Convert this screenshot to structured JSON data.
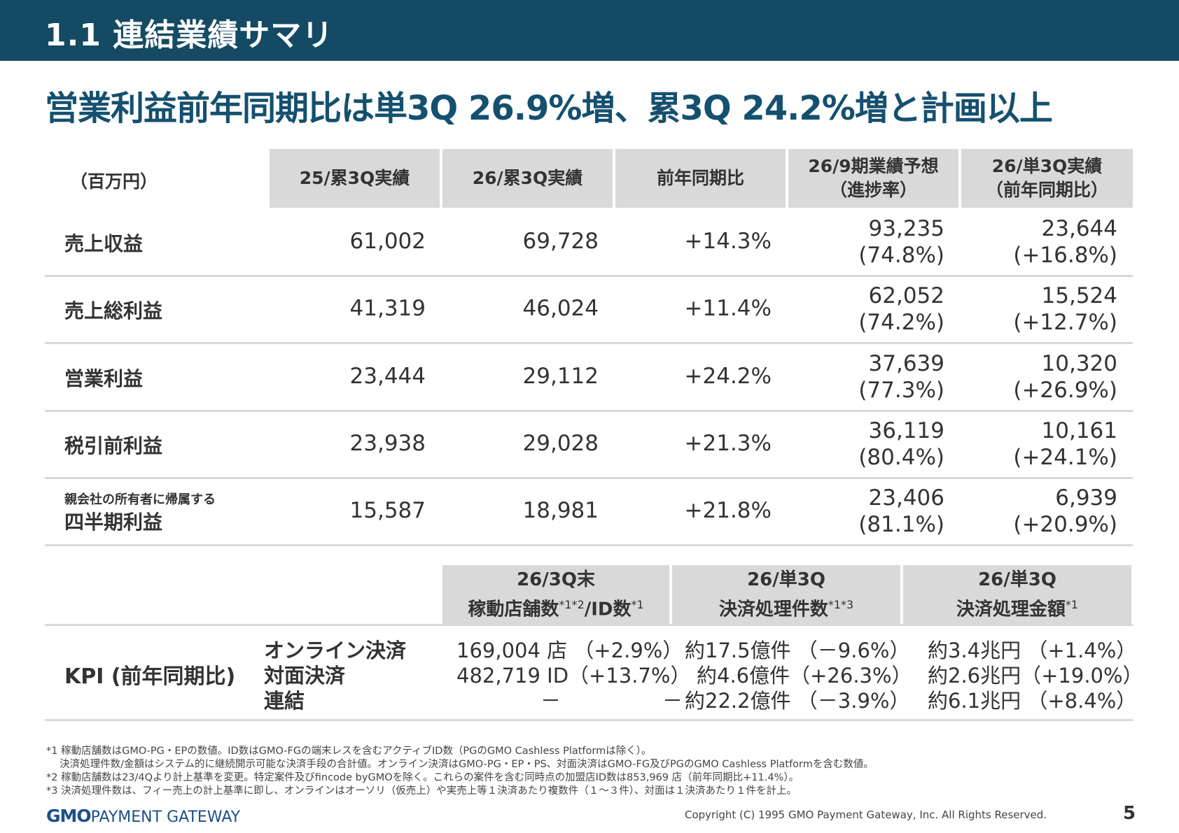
{
  "header": {
    "title": "1.1  連結業績サマリ"
  },
  "headline": "営業利益前年同期比は単3Q 26.9%増、累3Q 24.2%増と計画以上",
  "table": {
    "unit_label": "（百万円）",
    "columns": [
      {
        "line1": "25/累3Q実績",
        "line2": ""
      },
      {
        "line1": "26/累3Q実績",
        "line2": ""
      },
      {
        "line1": "前年同期比",
        "line2": ""
      },
      {
        "line1": "26/9期業績予想",
        "line2": "（進捗率）"
      },
      {
        "line1": "26/単3Q実績",
        "line2": "（前年同期比）"
      }
    ],
    "rows": [
      {
        "sublabel": "",
        "label": "売上収益",
        "c1": "61,002",
        "c2": "69,728",
        "c3": "+14.3%",
        "c4a": "93,235",
        "c4b": "(74.8%)",
        "c5a": "23,644",
        "c5b": "(+16.8%)"
      },
      {
        "sublabel": "",
        "label": "売上総利益",
        "c1": "41,319",
        "c2": "46,024",
        "c3": "+11.4%",
        "c4a": "62,052",
        "c4b": "(74.2%)",
        "c5a": "15,524",
        "c5b": "(+12.7%)"
      },
      {
        "sublabel": "",
        "label": "営業利益",
        "c1": "23,444",
        "c2": "29,112",
        "c3": "+24.2%",
        "c4a": "37,639",
        "c4b": "(77.3%)",
        "c5a": "10,320",
        "c5b": "(+26.9%)"
      },
      {
        "sublabel": "",
        "label": "税引前利益",
        "c1": "23,938",
        "c2": "29,028",
        "c3": "+21.3%",
        "c4a": "36,119",
        "c4b": "(80.4%)",
        "c5a": "10,161",
        "c5b": "(+24.1%)"
      },
      {
        "sublabel": "親会社の所有者に帰属する",
        "label": "四半期利益",
        "c1": "15,587",
        "c2": "18,981",
        "c3": "+21.8%",
        "c4a": "23,406",
        "c4b": "(81.1%)",
        "c5a": "6,939",
        "c5b": "(+20.9%)"
      }
    ]
  },
  "kpi": {
    "headers": [
      {
        "line1": "26/3Q末",
        "line2": "稼動店舗数",
        "sup1": "*1*2",
        "mid": "/ID数",
        "sup2": "*1"
      },
      {
        "line1": "26/単3Q",
        "line2": "決済処理件数",
        "sup1": "*1*3",
        "mid": "",
        "sup2": ""
      },
      {
        "line1": "26/単3Q",
        "line2": "決済処理金額",
        "sup1": "*1",
        "mid": "",
        "sup2": ""
      }
    ],
    "label": "KPI (前年同期比)",
    "sub_labels": [
      "オンライン決済",
      "対面決済",
      "連結"
    ],
    "col1": [
      "169,004 店 （+2.9%）",
      "482,719 ID（+13.7%）",
      "－　　　　　－"
    ],
    "col2": [
      "約17.5億件 （－9.6%）",
      "約4.6億件（+26.3%）",
      "約22.2億件 （－3.9%）"
    ],
    "col3": [
      "約3.4兆円 （+1.4%）",
      "約2.6兆円（+19.0%）",
      "約6.1兆円 （+8.4%）"
    ]
  },
  "footnotes": [
    "*1 稼動店舗数はGMO-PG・EPの数値。ID数はGMO-FGの端末レスを含むアクティブID数（PGのGMO Cashless Platformは除く）。",
    "　 決済処理件数/金額はシステム的に継続開示可能な決済手段の合計値。オンライン決済はGMO-PG・EP・PS、対面決済はGMO-FG及びPGのGMO Cashless Platformを含む数値。",
    "*2 稼動店舗数は23/4Qより計上基準を変更。特定案件及びfincode byGMOを除く。これらの案件を含む同時点の加盟店ID数は853,969 店（前年同期比+11.4%）。",
    "*3 決済処理件数は、フィー売上の計上基準に即し、オンラインはオーソリ（仮売上）や実売上等１決済あたり複数件（１～３件）、対面は１決済あたり１件を計上。"
  ],
  "footer": {
    "logo_gmo": "GMO",
    "logo_text": "PAYMENT GATEWAY",
    "copyright": "Copyright (C) 1995 GMO Payment Gateway, Inc. All Rights Reserved.",
    "page": "5"
  }
}
